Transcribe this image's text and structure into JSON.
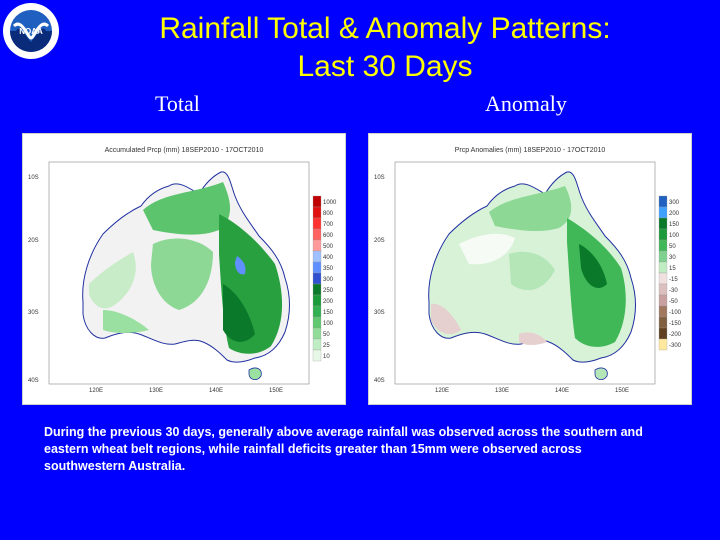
{
  "title_line1": "Rainfall Total & Anomaly Patterns:",
  "title_line2": "Last 30 Days",
  "logo": {
    "text": "NOAA",
    "icon": "noaa-logo-icon"
  },
  "panels": {
    "total": {
      "label": "Total",
      "map_title": "Accumulated Prcp (mm) 18SEP2010 - 17OCT2010",
      "lat_ticks": [
        "10S",
        "20S",
        "30S",
        "40S"
      ],
      "lon_ticks": [
        "120E",
        "130E",
        "140E",
        "150E"
      ],
      "legend": [
        "1000",
        "800",
        "700",
        "600",
        "500",
        "400",
        "350",
        "300",
        "250",
        "200",
        "150",
        "100",
        "50",
        "25",
        "10"
      ],
      "legend_colors": [
        "#c00000",
        "#e01010",
        "#ff3030",
        "#ff6060",
        "#ff9a9a",
        "#9ec0ff",
        "#6090ff",
        "#3050d0",
        "#0a7a2a",
        "#1a9a3a",
        "#30b050",
        "#60c870",
        "#90dc98",
        "#c0eec4",
        "#e8f8e8"
      ]
    },
    "anomaly": {
      "label": "Anomaly",
      "map_title": "Prcp Anomalies (mm) 18SEP2010 - 17OCT2010",
      "lat_ticks": [
        "10S",
        "20S",
        "30S",
        "40S"
      ],
      "lon_ticks": [
        "120E",
        "130E",
        "140E",
        "150E"
      ],
      "legend": [
        "300",
        "200",
        "150",
        "100",
        "50",
        "30",
        "15",
        "-15",
        "-30",
        "-50",
        "-100",
        "-150",
        "-200",
        "-300"
      ],
      "legend_colors": [
        "#2060c0",
        "#40a0ff",
        "#0a7a2a",
        "#1a9a3a",
        "#40b858",
        "#80d090",
        "#c0ecc4",
        "#f0e0e0",
        "#dcc0c0",
        "#c8a0a0",
        "#a07860",
        "#806040",
        "#604020",
        "#ffe8a0"
      ]
    }
  },
  "caption": "During the previous 30 days, generally above average rainfall was observed across the southern and eastern wheat belt regions, while rainfall deficits greater than 15mm were observed across southwestern Australia."
}
